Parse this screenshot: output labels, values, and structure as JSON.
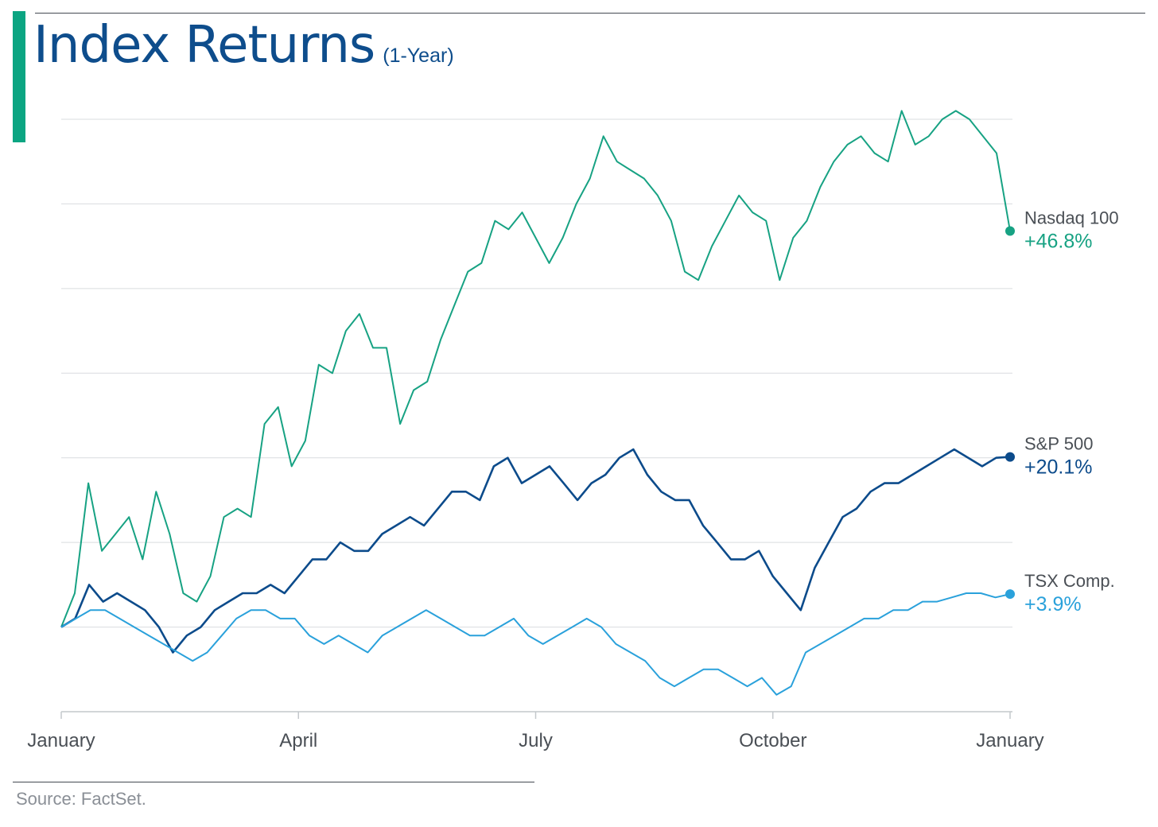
{
  "header": {
    "title": "Index Returns",
    "subtitle": "(1-Year)",
    "accent_color": "#0ba582",
    "title_color": "#0e4d8c"
  },
  "footer": {
    "source": "Source: FactSet."
  },
  "chart_data": {
    "type": "line",
    "title": "Index Returns",
    "subtitle": "(1-Year)",
    "xlabel": "",
    "ylabel": "",
    "x_ticks": [
      "January",
      "April",
      "July",
      "October",
      "January"
    ],
    "xlim": [
      0,
      252
    ],
    "ylim": [
      -10,
      60
    ],
    "grid": true,
    "legend": "end-of-line labels",
    "series": [
      {
        "name": "Nasdaq 100",
        "end_label": "+46.8%",
        "color": "#17a283",
        "values": [
          0.0,
          4.0,
          17.0,
          9.0,
          11.0,
          13.0,
          8.0,
          16.0,
          11.0,
          4.0,
          3.0,
          6.0,
          13.0,
          14.0,
          13.0,
          24.0,
          26.0,
          19.0,
          22.0,
          31.0,
          30.0,
          35.0,
          37.0,
          33.0,
          33.0,
          24.0,
          28.0,
          29.0,
          34.0,
          38.0,
          42.0,
          43.0,
          48.0,
          47.0,
          49.0,
          46.0,
          43.0,
          46.0,
          50.0,
          53.0,
          58.0,
          55.0,
          54.0,
          53.0,
          51.0,
          48.0,
          42.0,
          41.0,
          45.0,
          48.0,
          51.0,
          49.0,
          48.0,
          41.0,
          46.0,
          48.0,
          52.0,
          55.0,
          57.0,
          58.0,
          56.0,
          55.0,
          61.0,
          57.0,
          58.0,
          60.0,
          61.0,
          60.0,
          58.0,
          56.0,
          46.8
        ]
      },
      {
        "name": "S&P 500",
        "end_label": "+20.1%",
        "color": "#0c4b8b",
        "values": [
          0.0,
          1.0,
          5.0,
          3.0,
          4.0,
          3.0,
          2.0,
          0.0,
          -3.0,
          -1.0,
          0.0,
          2.0,
          3.0,
          4.0,
          4.0,
          5.0,
          4.0,
          6.0,
          8.0,
          8.0,
          10.0,
          9.0,
          9.0,
          11.0,
          12.0,
          13.0,
          12.0,
          14.0,
          16.0,
          16.0,
          15.0,
          19.0,
          20.0,
          17.0,
          18.0,
          19.0,
          17.0,
          15.0,
          17.0,
          18.0,
          20.0,
          21.0,
          18.0,
          16.0,
          15.0,
          15.0,
          12.0,
          10.0,
          8.0,
          8.0,
          9.0,
          6.0,
          4.0,
          2.0,
          7.0,
          10.0,
          13.0,
          14.0,
          16.0,
          17.0,
          17.0,
          18.0,
          19.0,
          20.0,
          21.0,
          20.0,
          19.0,
          20.0,
          20.1
        ]
      },
      {
        "name": "TSX Comp.",
        "end_label": "+3.9%",
        "color": "#2aa1db",
        "values": [
          0.0,
          1.0,
          2.0,
          2.0,
          1.0,
          0.0,
          -1.0,
          -2.0,
          -3.0,
          -4.0,
          -3.0,
          -1.0,
          1.0,
          2.0,
          2.0,
          1.0,
          1.0,
          -1.0,
          -2.0,
          -1.0,
          -2.0,
          -3.0,
          -1.0,
          0.0,
          1.0,
          2.0,
          1.0,
          0.0,
          -1.0,
          -1.0,
          0.0,
          1.0,
          -1.0,
          -2.0,
          -1.0,
          0.0,
          1.0,
          0.0,
          -2.0,
          -3.0,
          -4.0,
          -6.0,
          -7.0,
          -6.0,
          -5.0,
          -5.0,
          -6.0,
          -7.0,
          -6.0,
          -8.0,
          -7.0,
          -3.0,
          -2.0,
          -1.0,
          0.0,
          1.0,
          1.0,
          2.0,
          2.0,
          3.0,
          3.0,
          3.5,
          4.0,
          4.0,
          3.5,
          3.9
        ]
      }
    ]
  }
}
